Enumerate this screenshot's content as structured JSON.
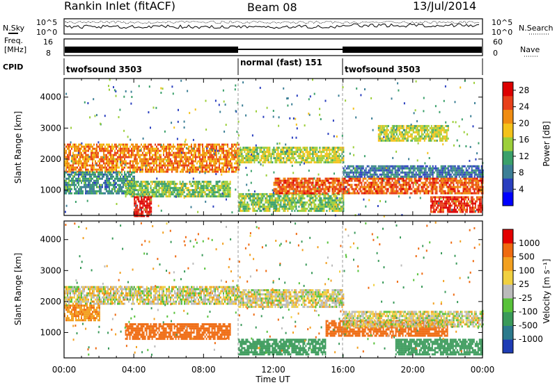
{
  "header": {
    "title": "Rankin Inlet (fitACF)",
    "beam": "Beam 08",
    "date": "13/Jul/2014"
  },
  "noise_panel": {
    "left_label": "N.Sky",
    "right_label": "N.Search",
    "left_ticks": [
      "10^5",
      "10^0"
    ],
    "right_ticks": [
      "10^5",
      "10^0"
    ]
  },
  "freq_panel": {
    "left_label_1": "Freq.",
    "left_label_2": "[MHz]",
    "right_label": "Nave",
    "left_ticks": [
      "16",
      "8"
    ],
    "right_ticks": [
      "60",
      "0"
    ]
  },
  "cpid_panel": {
    "label": "CPID",
    "segments": [
      {
        "label": "twofsound 3503",
        "start_hour": 0,
        "end_hour": 10
      },
      {
        "label": "normal (fast) 151",
        "start_hour": 10,
        "end_hour": 16
      },
      {
        "label": "twofsound 3503",
        "start_hour": 16,
        "end_hour": 24
      }
    ]
  },
  "x_axis": {
    "label": "Time UT",
    "ticks": [
      "00:00",
      "04:00",
      "08:00",
      "12:00",
      "16:00",
      "20:00",
      "00:00"
    ],
    "range_hours": [
      0,
      24
    ]
  },
  "chart_data": [
    {
      "type": "heatmap",
      "name": "power",
      "ylabel": "Slant Range [km]",
      "yticks": [
        "1000",
        "2000",
        "3000",
        "4000"
      ],
      "ylim": [
        180,
        4600
      ],
      "colorbar": {
        "label": "Power [dB]",
        "ticks": [
          "4",
          "8",
          "12",
          "16",
          "20",
          "24",
          "28"
        ],
        "range": [
          0,
          30
        ],
        "colors": [
          "#0000ff",
          "#2a3fbf",
          "#3c7f96",
          "#3aa06a",
          "#9ccf3a",
          "#f4c21a",
          "#f08c12",
          "#e8401a",
          "#dd0000"
        ]
      },
      "bands": [
        {
          "t_start": 0.0,
          "t_end": 10.0,
          "range_lo": 1600,
          "range_hi": 2500,
          "value": 22
        },
        {
          "t_start": 0.0,
          "t_end": 4.0,
          "range_lo": 900,
          "range_hi": 1600,
          "value": 10
        },
        {
          "t_start": 3.5,
          "t_end": 9.5,
          "range_lo": 800,
          "range_hi": 1300,
          "value": 14
        },
        {
          "t_start": 4.0,
          "t_end": 5.0,
          "range_lo": 180,
          "range_hi": 800,
          "value": 28
        },
        {
          "t_start": 10.0,
          "t_end": 16.0,
          "range_lo": 1900,
          "range_hi": 2400,
          "value": 16
        },
        {
          "t_start": 10.0,
          "t_end": 16.0,
          "range_lo": 300,
          "range_hi": 900,
          "value": 14
        },
        {
          "t_start": 12.0,
          "t_end": 24.0,
          "range_lo": 900,
          "range_hi": 1400,
          "value": 24
        },
        {
          "t_start": 16.0,
          "t_end": 24.0,
          "range_lo": 1400,
          "range_hi": 1800,
          "value": 8
        },
        {
          "t_start": 18.0,
          "t_end": 22.0,
          "range_lo": 2600,
          "range_hi": 3100,
          "value": 16
        },
        {
          "t_start": 21.0,
          "t_end": 24.0,
          "range_lo": 300,
          "range_hi": 800,
          "value": 26
        }
      ]
    },
    {
      "type": "heatmap",
      "name": "velocity",
      "ylabel": "Slant Range [km]",
      "yticks": [
        "1000",
        "2000",
        "3000",
        "4000"
      ],
      "ylim": [
        180,
        4600
      ],
      "colorbar": {
        "label": "Velocity [m s⁻¹]",
        "ticks": [
          "1000",
          "500",
          "100",
          "25",
          "-25",
          "-100",
          "-500",
          "-1000"
        ],
        "colors": [
          "#1e3cb4",
          "#2c7a8c",
          "#3a9a5a",
          "#58c23a",
          "#bbbbbb",
          "#f0d040",
          "#f2a020",
          "#ef6a10",
          "#e40000"
        ]
      },
      "bands": [
        {
          "t_start": 0.0,
          "t_end": 10.0,
          "range_lo": 1900,
          "range_hi": 2500,
          "value": 0
        },
        {
          "t_start": 0.0,
          "t_end": 2.0,
          "range_lo": 1400,
          "range_hi": 1900,
          "value": 80
        },
        {
          "t_start": 3.5,
          "t_end": 9.5,
          "range_lo": 800,
          "range_hi": 1300,
          "value": 300
        },
        {
          "t_start": 10.0,
          "t_end": 16.0,
          "range_lo": 1800,
          "range_hi": 2400,
          "value": 0
        },
        {
          "t_start": 10.0,
          "t_end": 15.0,
          "range_lo": 300,
          "range_hi": 800,
          "value": -200
        },
        {
          "t_start": 15.0,
          "t_end": 22.0,
          "range_lo": 900,
          "range_hi": 1400,
          "value": 200
        },
        {
          "t_start": 16.0,
          "t_end": 24.0,
          "range_lo": 1200,
          "range_hi": 1700,
          "value": 0
        },
        {
          "t_start": 19.0,
          "t_end": 24.0,
          "range_lo": 300,
          "range_hi": 800,
          "value": -300
        }
      ]
    }
  ]
}
